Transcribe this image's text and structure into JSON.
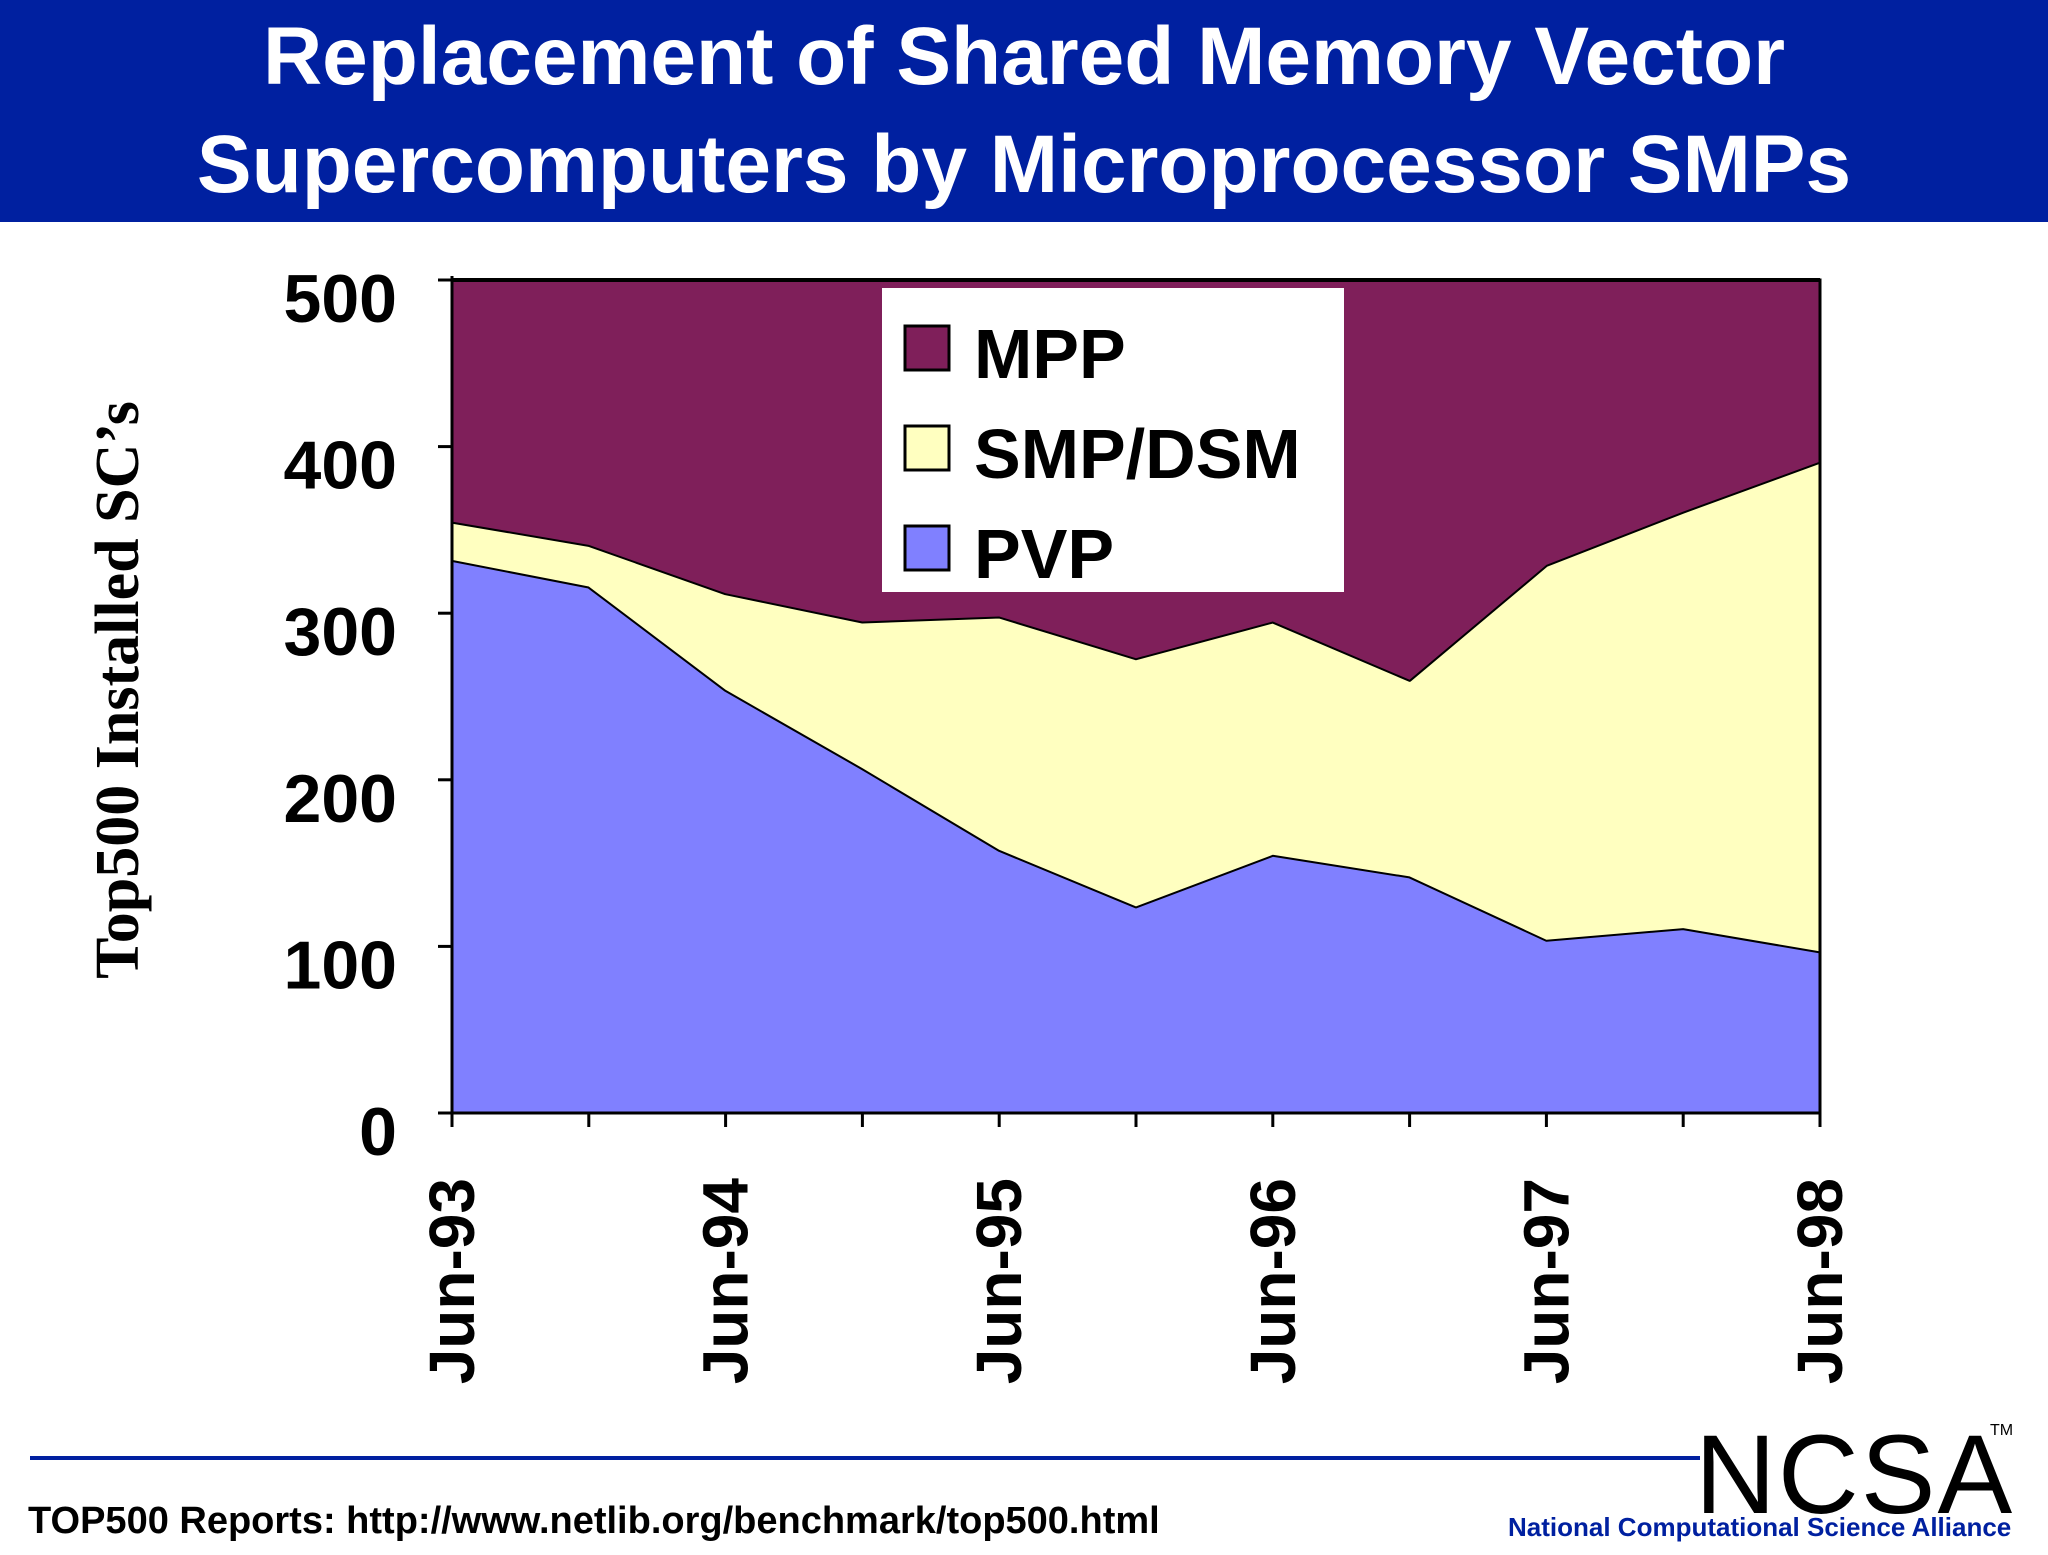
{
  "header": {
    "title_line1": "Replacement of Shared Memory Vector",
    "title_line2": "Supercomputers by Microprocessor SMPs"
  },
  "chart_data": {
    "type": "area",
    "stacked": true,
    "ylabel": "Top500 Installed SC’s",
    "ylim": [
      0,
      500
    ],
    "yticks": [
      0,
      100,
      200,
      300,
      400,
      500
    ],
    "categories": [
      "Jun-93",
      "Nov-93",
      "Jun-94",
      "Nov-94",
      "Jun-95",
      "Nov-95",
      "Jun-96",
      "Nov-96",
      "Jun-97",
      "Nov-97",
      "Jun-98"
    ],
    "tick_labels": [
      "Jun-93",
      "",
      "Jun-94",
      "",
      "Jun-95",
      "",
      "Jun-96",
      "",
      "Jun-97",
      "",
      "Jun-98"
    ],
    "legend_position": "top-center",
    "series": [
      {
        "name": "PVP",
        "color": "#8080ff",
        "values": [
          332,
          316,
          254,
          207,
          158,
          124,
          155,
          142,
          104,
          111,
          97
        ]
      },
      {
        "name": "SMP/DSM",
        "color": "#ffffc0",
        "values": [
          23,
          25,
          58,
          88,
          140,
          149,
          140,
          118,
          225,
          250,
          294
        ]
      },
      {
        "name": "MPP",
        "color": "#7f1f5a",
        "values": [
          145,
          159,
          188,
          205,
          202,
          227,
          205,
          240,
          171,
          139,
          109
        ]
      }
    ],
    "legend_order": [
      "MPP",
      "SMP/DSM",
      "PVP"
    ]
  },
  "footer": {
    "source": "TOP500 Reports:  http://www.netlib.org/benchmark/top500.html",
    "logo_text": "NCSA",
    "logo_tm": "TM",
    "org_name": "National Computational Science Alliance"
  }
}
